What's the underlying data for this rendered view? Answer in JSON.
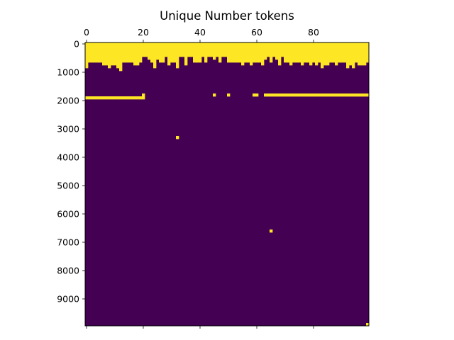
{
  "chart_data": {
    "type": "heatmap",
    "title": "Unique Number tokens",
    "xlabel": "",
    "ylabel": "",
    "x_axis_position": "top",
    "xlim": [
      0,
      100
    ],
    "ylim": [
      10000,
      0
    ],
    "x_ticks": [
      0,
      20,
      40,
      60,
      80
    ],
    "y_ticks": [
      0,
      1000,
      2000,
      3000,
      4000,
      5000,
      6000,
      7000,
      8000,
      9000
    ],
    "x_tick_labels": [
      "0",
      "20",
      "40",
      "60",
      "80"
    ],
    "y_tick_labels": [
      "0",
      "1000",
      "2000",
      "3000",
      "4000",
      "5000",
      "6000",
      "7000",
      "8000",
      "9000"
    ],
    "row_bin_size": 100,
    "num_rows": 100,
    "num_cols": 100,
    "colormap": {
      "low": "#440154",
      "high": "#fde725"
    },
    "grid": false,
    "legend": "none",
    "fill_depth_rows_per_column": [
      9,
      7,
      7,
      7,
      7,
      7,
      8,
      8,
      9,
      8,
      8,
      9,
      10,
      7,
      7,
      7,
      7,
      8,
      8,
      7,
      5,
      5,
      6,
      7,
      9,
      6,
      7,
      7,
      5,
      8,
      7,
      7,
      9,
      5,
      5,
      8,
      5,
      5,
      7,
      7,
      7,
      5,
      7,
      5,
      5,
      6,
      5,
      7,
      5,
      5,
      7,
      7,
      7,
      7,
      7,
      8,
      7,
      7,
      8,
      7,
      7,
      7,
      8,
      6,
      5,
      7,
      5,
      6,
      8,
      5,
      7,
      7,
      8,
      7,
      7,
      7,
      8,
      7,
      7,
      8,
      7,
      8,
      7,
      9,
      8,
      8,
      7,
      7,
      8,
      7,
      7,
      7,
      9,
      8,
      9,
      7,
      8,
      8,
      8,
      7
    ],
    "extra_cells": [
      [
        0,
        13
      ],
      [
        0,
        14
      ],
      [
        0,
        15
      ],
      [
        0,
        19
      ],
      [
        0,
        20
      ],
      [
        0,
        22
      ],
      [
        0,
        23
      ],
      [
        0,
        24
      ],
      [
        0,
        25
      ],
      [
        0,
        29
      ],
      [
        0,
        30
      ],
      [
        0,
        40
      ],
      [
        0,
        46
      ],
      [
        0,
        50
      ],
      [
        0,
        60
      ],
      [
        0,
        75
      ],
      [
        0,
        80
      ],
      [
        0,
        99
      ],
      [
        33,
        32
      ],
      [
        66,
        65
      ],
      [
        1,
        75
      ],
      [
        99,
        99
      ]
    ],
    "horizontal_segments": [
      {
        "row": 19,
        "col_start": 0,
        "col_end": 20
      },
      {
        "row": 18,
        "col_start": 20,
        "col_end": 20
      },
      {
        "row": 18,
        "col_start": 45,
        "col_end": 45
      },
      {
        "row": 18,
        "col_start": 50,
        "col_end": 50
      },
      {
        "row": 18,
        "col_start": 59,
        "col_end": 60
      },
      {
        "row": 18,
        "col_start": 63,
        "col_end": 99
      }
    ]
  }
}
